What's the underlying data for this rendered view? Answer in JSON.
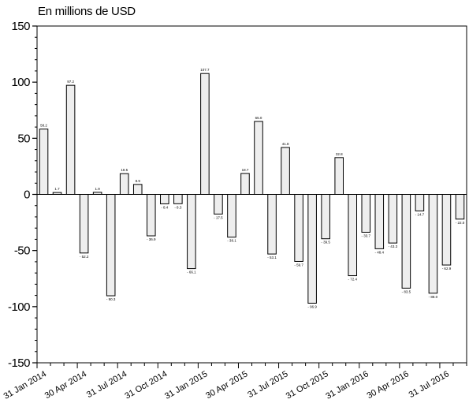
{
  "chart_data": {
    "type": "bar",
    "unit_label": "En millions de USD",
    "categories": [
      "Jan 2014",
      "Feb 2014",
      "Mar 2014",
      "Apr 2014",
      "May 2014",
      "Jun 2014",
      "Jul 2014",
      "Aug 2014",
      "Sep 2014",
      "Oct 2014",
      "Nov 2014",
      "Dec 2014",
      "Jan 2015",
      "Feb 2015",
      "Mar 2015",
      "Apr 2015",
      "May 2015",
      "Jun 2015",
      "Jul 2015",
      "Aug 2015",
      "Sep 2015",
      "Oct 2015",
      "Nov 2015",
      "Dec 2015",
      "Jan 2016",
      "Feb 2016",
      "Mar 2016",
      "Apr 2016",
      "May 2016",
      "Jun 2016",
      "Jul 2016",
      "Aug 2016"
    ],
    "values": [
      58.2,
      1.7,
      97.2,
      -52.2,
      1.9,
      -90.3,
      18.5,
      8.9,
      -36.9,
      -8.4,
      -8.3,
      -66.1,
      107.7,
      -17.5,
      -38.1,
      18.7,
      65.0,
      -53.1,
      41.8,
      -59.7,
      -96.9,
      -39.5,
      32.8,
      -72.4,
      -33.7,
      -48.4,
      -43.3,
      -83.5,
      -14.7,
      -88.0,
      -62.9,
      -22.0
    ],
    "data_labels": [
      "58.2",
      "1.7",
      "97.2",
      "- 52.2",
      "1.9",
      "- 90.3",
      "18.5",
      "8.9",
      "- 36.9",
      "- 8.4",
      "- 8.3",
      "- 66.1",
      "107.7",
      "- 17.5",
      "- 38.1",
      "18.7",
      "65.0",
      "- 53.1",
      "41.8",
      "- 59.7",
      "- 96.9",
      "- 39.5",
      "32.8",
      "- 72.4",
      "- 33.7",
      "- 48.4",
      "- 43.3",
      "- 83.5",
      "- 14.7",
      "- 88.0",
      "- 62.9",
      "- 22.0"
    ],
    "ylim": [
      -150,
      150
    ],
    "y_ticks": [
      "150",
      "100",
      "50",
      "0",
      "-50",
      "-100",
      "-150"
    ],
    "x_tick_labels": [
      "31 Jan 2014",
      "30 Apr 2014",
      "31 Jul 2014",
      "31 Oct 2014",
      "31 Jan 2015",
      "30 Apr 2015",
      "31 Jul 2015",
      "31 Oct 2015",
      "31 Jan 2016",
      "30 Apr 2016",
      "31 Jul 2016"
    ],
    "x_tick_label_category_index": [
      0,
      3,
      6,
      9,
      12,
      15,
      18,
      21,
      24,
      27,
      30
    ],
    "bar_fill": "#eeeeee",
    "bar_stroke": "#000000",
    "grid": false
  }
}
